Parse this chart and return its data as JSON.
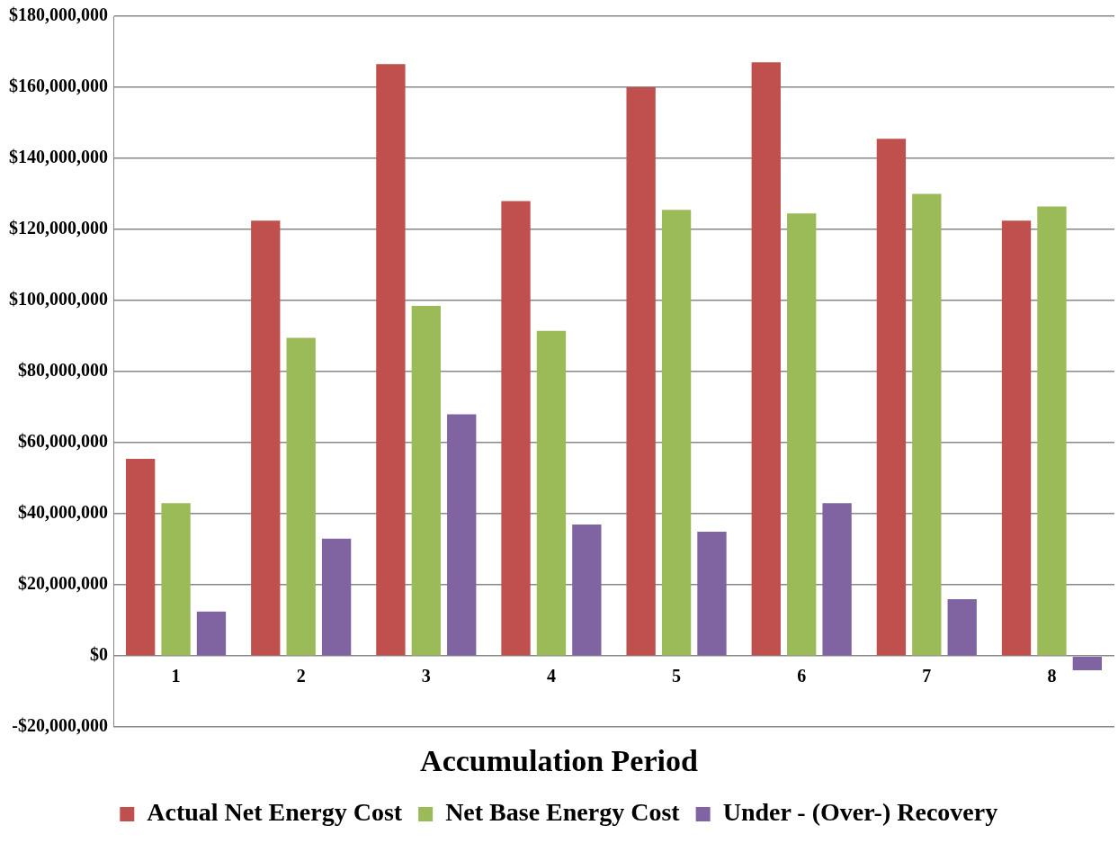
{
  "chart_data": {
    "type": "bar",
    "xlabel": "Accumulation Period",
    "categories": [
      "1",
      "2",
      "3",
      "4",
      "5",
      "6",
      "7",
      "8"
    ],
    "series": [
      {
        "name": "Actual Net Energy Cost",
        "color": "#c0504d",
        "values": [
          55500000,
          122500000,
          166500000,
          128000000,
          160000000,
          167000000,
          145500000,
          122500000
        ]
      },
      {
        "name": "Net Base Energy Cost",
        "color": "#9bbb59",
        "values": [
          43000000,
          89500000,
          98500000,
          91500000,
          125500000,
          124500000,
          130000000,
          126500000
        ]
      },
      {
        "name": "Under - (Over-) Recovery",
        "color": "#8064a2",
        "values": [
          12500000,
          33000000,
          68000000,
          37000000,
          35000000,
          43000000,
          16000000,
          -4000000
        ]
      }
    ],
    "ylim": [
      -20000000,
      180000000
    ],
    "yticks": [
      {
        "value": -20000000,
        "label": "-$20,000,000"
      },
      {
        "value": 0,
        "label": "$0"
      },
      {
        "value": 20000000,
        "label": "$20,000,000"
      },
      {
        "value": 40000000,
        "label": "$40,000,000"
      },
      {
        "value": 60000000,
        "label": "$60,000,000"
      },
      {
        "value": 80000000,
        "label": "$80,000,000"
      },
      {
        "value": 100000000,
        "label": "$100,000,000"
      },
      {
        "value": 120000000,
        "label": "$120,000,000"
      },
      {
        "value": 140000000,
        "label": "$140,000,000"
      },
      {
        "value": 160000000,
        "label": "$160,000,000"
      },
      {
        "value": 180000000,
        "label": "$180,000,000"
      }
    ],
    "grid": "y",
    "legend": "bottom"
  }
}
